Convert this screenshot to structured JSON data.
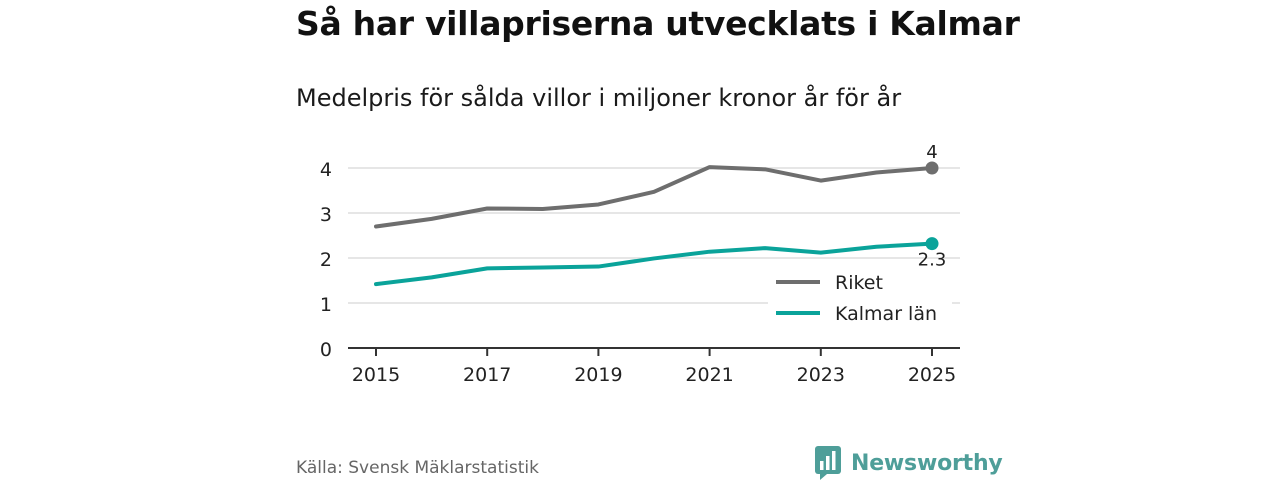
{
  "header": {
    "title": "Så har villapriserna utvecklats i Kalmar",
    "subtitle": "Medelpris för sålda villor i miljoner kronor år för år"
  },
  "footer": {
    "source": "Källa: Svensk Mäklarstatistik",
    "brand": "Newsworthy"
  },
  "colors": {
    "riket": "#6e6e6e",
    "kalmar": "#0aa39a",
    "grid": "#dddddd",
    "axis": "#333333",
    "brand": "#4e9e99"
  },
  "chart_data": {
    "type": "line",
    "title": "Så har villapriserna utvecklats i Kalmar",
    "subtitle": "Medelpris för sålda villor i miljoner kronor år för år",
    "xlabel": "",
    "ylabel": "",
    "x": [
      2015,
      2016,
      2017,
      2018,
      2019,
      2020,
      2021,
      2022,
      2023,
      2024,
      2025
    ],
    "xticks": [
      "2015",
      "2017",
      "2019",
      "2021",
      "2023",
      "2025"
    ],
    "xlim": [
      2015,
      2025
    ],
    "yticks": [
      "0",
      "1",
      "2",
      "3",
      "4"
    ],
    "ylim": [
      0,
      4
    ],
    "grid": true,
    "legend_position": "bottom-right",
    "series": [
      {
        "name": "Riket",
        "color": "#6e6e6e",
        "values": [
          2.7,
          2.87,
          3.1,
          3.09,
          3.19,
          3.47,
          4.02,
          3.97,
          3.72,
          3.9,
          4.0
        ],
        "end_label": "4"
      },
      {
        "name": "Kalmar län",
        "color": "#0aa39a",
        "values": [
          1.42,
          1.57,
          1.77,
          1.79,
          1.81,
          1.99,
          2.14,
          2.22,
          2.12,
          2.25,
          2.32
        ],
        "end_label": "2.3"
      }
    ]
  }
}
